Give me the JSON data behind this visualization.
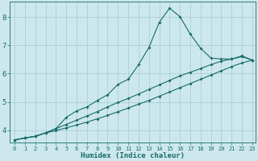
{
  "xlabel": "Humidex (Indice chaleur)",
  "background_color": "#cce8ec",
  "grid_color": "#aad0d8",
  "line_color": "#1a6b6b",
  "xlim_min": -0.5,
  "xlim_max": 23.3,
  "ylim_min": 3.55,
  "ylim_max": 8.55,
  "xticks": [
    0,
    1,
    2,
    3,
    4,
    5,
    6,
    7,
    8,
    9,
    10,
    11,
    12,
    13,
    14,
    15,
    16,
    17,
    18,
    19,
    20,
    21,
    22,
    23
  ],
  "yticks": [
    4,
    5,
    6,
    7,
    8
  ],
  "line1_x": [
    0,
    1,
    2,
    3,
    4,
    5,
    6,
    7,
    8,
    9,
    10,
    11,
    12,
    13,
    14,
    15,
    16,
    17,
    18,
    19,
    20,
    21,
    22,
    23
  ],
  "line1_y": [
    3.65,
    3.72,
    3.78,
    3.9,
    4.05,
    4.45,
    4.68,
    4.82,
    5.05,
    5.25,
    5.62,
    5.8,
    6.32,
    6.93,
    7.82,
    8.32,
    8.02,
    7.4,
    6.9,
    6.55,
    6.52,
    6.52,
    6.63,
    6.48
  ],
  "line2_x": [
    0,
    1,
    2,
    3,
    4,
    5,
    6,
    7,
    8,
    9,
    10,
    11,
    12,
    13,
    14,
    15,
    16,
    17,
    18,
    19,
    20,
    21,
    22,
    23
  ],
  "line2_y": [
    3.65,
    3.72,
    3.78,
    3.9,
    4.05,
    4.2,
    4.35,
    4.5,
    4.65,
    4.82,
    4.98,
    5.12,
    5.28,
    5.44,
    5.6,
    5.76,
    5.92,
    6.05,
    6.18,
    6.32,
    6.44,
    6.52,
    6.6,
    6.48
  ],
  "line3_x": [
    0,
    1,
    2,
    3,
    4,
    5,
    6,
    7,
    8,
    9,
    10,
    11,
    12,
    13,
    14,
    15,
    16,
    17,
    18,
    19,
    20,
    21,
    22,
    23
  ],
  "line3_y": [
    3.65,
    3.72,
    3.78,
    3.9,
    3.98,
    4.08,
    4.18,
    4.28,
    4.4,
    4.52,
    4.65,
    4.78,
    4.92,
    5.05,
    5.2,
    5.35,
    5.5,
    5.65,
    5.8,
    5.95,
    6.1,
    6.25,
    6.38,
    6.48
  ],
  "xlabel_fontsize": 6.5,
  "tick_fontsize_x": 5.0,
  "tick_fontsize_y": 6.5,
  "marker_size": 2.0,
  "linewidth": 0.8
}
